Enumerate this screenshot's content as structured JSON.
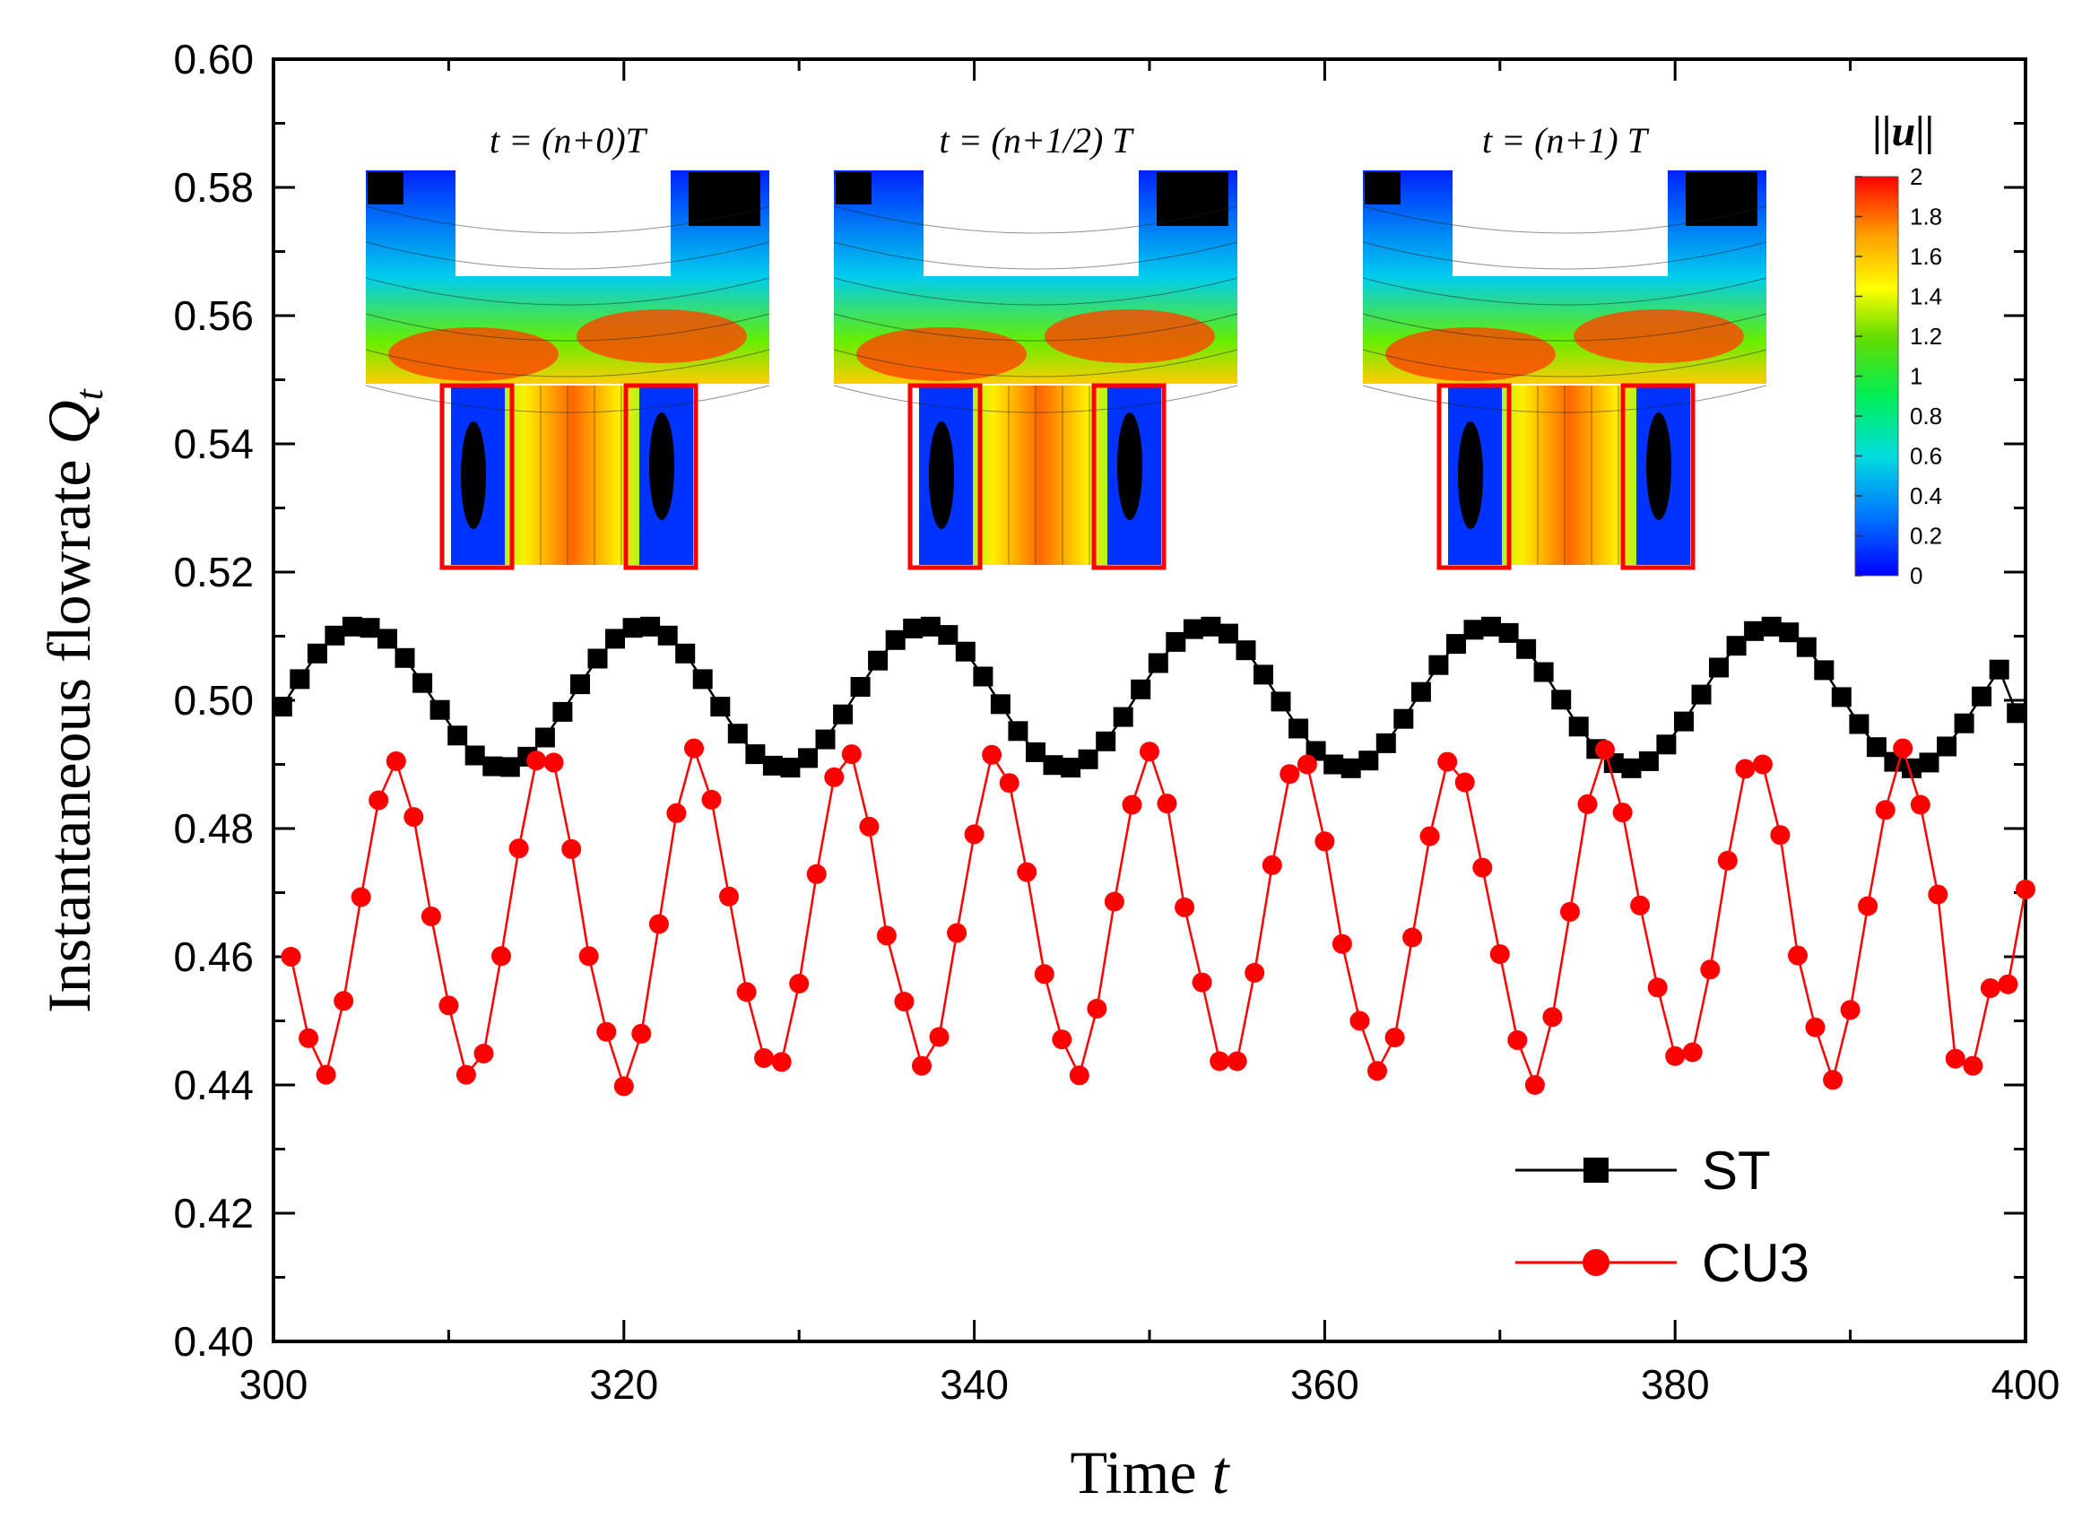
{
  "chart_data": {
    "type": "line",
    "xlabel": "Time t",
    "ylabel": "Instantaneous  flowrate Qt",
    "xlim": [
      300,
      400
    ],
    "ylim": [
      0.4,
      0.6
    ],
    "x_ticks": [
      "300",
      "320",
      "340",
      "360",
      "380",
      "400"
    ],
    "y_ticks": [
      "0.40",
      "0.42",
      "0.44",
      "0.46",
      "0.48",
      "0.50",
      "0.52",
      "0.54",
      "0.56",
      "0.58",
      "0.60"
    ],
    "legend_position": "bottom-right",
    "series": [
      {
        "name": "ST",
        "color": "#000000",
        "marker": "square",
        "x": [
          300.5,
          301.5,
          302.5,
          303.5,
          304.5,
          305.5,
          306.5,
          307.5,
          308.5,
          309.5,
          310.5,
          311.5,
          312.5,
          313.5,
          314.5,
          315.5,
          316.5,
          317.5,
          318.5,
          319.5,
          320.5,
          321.5,
          322.5,
          323.5,
          324.5,
          325.5,
          326.5,
          327.5,
          328.5,
          329.5,
          330.5,
          331.5,
          332.5,
          333.5,
          334.5,
          335.5,
          336.5,
          337.5,
          338.5,
          339.5,
          340.5,
          341.5,
          342.5,
          343.5,
          344.5,
          345.5,
          346.5,
          347.5,
          348.5,
          349.5,
          350.5,
          351.5,
          352.5,
          353.5,
          354.5,
          355.5,
          356.5,
          357.5,
          358.5,
          359.5,
          360.5,
          361.5,
          362.5,
          363.5,
          364.5,
          365.5,
          366.5,
          367.5,
          368.5,
          369.5,
          370.5,
          371.5,
          372.5,
          373.5,
          374.5,
          375.5,
          376.5,
          377.5,
          378.5,
          379.5,
          380.5,
          381.5,
          382.5,
          383.5,
          384.5,
          385.5,
          386.5,
          387.5,
          388.5,
          389.5,
          390.5,
          391.5,
          392.5,
          393.5,
          394.5,
          395.5,
          396.5,
          397.5,
          398.5,
          399.5
        ],
        "values": [
          0.499,
          0.5033,
          0.5073,
          0.5101,
          0.5115,
          0.5113,
          0.5096,
          0.5066,
          0.5027,
          0.4985,
          0.4945,
          0.4914,
          0.4897,
          0.4896,
          0.4912,
          0.4942,
          0.4982,
          0.5025,
          0.5065,
          0.5096,
          0.5113,
          0.5115,
          0.5101,
          0.5073,
          0.5033,
          0.499,
          0.4948,
          0.4916,
          0.4898,
          0.4895,
          0.491,
          0.4939,
          0.4978,
          0.5021,
          0.5062,
          0.5094,
          0.5112,
          0.5115,
          0.5102,
          0.5076,
          0.5037,
          0.4994,
          0.4952,
          0.4919,
          0.4899,
          0.4895,
          0.4908,
          0.4936,
          0.4974,
          0.5017,
          0.5058,
          0.5091,
          0.5111,
          0.5115,
          0.5104,
          0.5078,
          0.504,
          0.4998,
          0.4956,
          0.4921,
          0.49,
          0.4894,
          0.4906,
          0.4933,
          0.4971,
          0.5013,
          0.5055,
          0.5088,
          0.511,
          0.5115,
          0.5105,
          0.508,
          0.5044,
          0.5001,
          0.4959,
          0.4924,
          0.4902,
          0.4894,
          0.4905,
          0.4931,
          0.4967,
          0.5009,
          0.5051,
          0.5085,
          0.5108,
          0.5115,
          0.5106,
          0.5083,
          0.5047,
          0.5005,
          0.4963,
          0.4927,
          0.4904,
          0.4894,
          0.4903,
          0.4928,
          0.4964,
          0.5006,
          0.5048,
          0.498
        ]
      },
      {
        "name": "CU3",
        "color": "#ff0000",
        "marker": "circle",
        "x": [
          301.0,
          302.0,
          303.0,
          304.0,
          305.0,
          306.0,
          307.0,
          308.0,
          309.0,
          310.0,
          311.0,
          312.0,
          313.0,
          314.0,
          315.0,
          316.0,
          317.0,
          318.0,
          319.0,
          320.0,
          321.0,
          322.0,
          323.0,
          324.0,
          325.0,
          326.0,
          327.0,
          328.0,
          329.0,
          330.0,
          331.0,
          332.0,
          333.0,
          334.0,
          335.0,
          336.0,
          337.0,
          338.0,
          339.0,
          340.0,
          341.0,
          342.0,
          343.0,
          344.0,
          345.0,
          346.0,
          347.0,
          348.0,
          349.0,
          350.0,
          351.0,
          352.0,
          353.0,
          354.0,
          355.0,
          356.0,
          357.0,
          358.0,
          359.0,
          360.0,
          361.0,
          362.0,
          363.0,
          364.0,
          365.0,
          366.0,
          367.0,
          368.0,
          369.0,
          370.0,
          371.0,
          372.0,
          373.0,
          374.0,
          375.0,
          376.0,
          377.0,
          378.0,
          379.0,
          380.0,
          381.0,
          382.0,
          383.0,
          384.0,
          385.0,
          386.0,
          387.0,
          388.0,
          389.0,
          390.0,
          391.0,
          392.0,
          393.0,
          394.0,
          395.0,
          396.0,
          397.0,
          398.0,
          399.0,
          400.0
        ],
        "values": [
          0.46,
          0.4473,
          0.4416,
          0.4531,
          0.4693,
          0.4844,
          0.4905,
          0.4818,
          0.4663,
          0.4524,
          0.4416,
          0.4449,
          0.4601,
          0.4769,
          0.4906,
          0.4903,
          0.4768,
          0.4601,
          0.4483,
          0.4398,
          0.448,
          0.4651,
          0.4824,
          0.4925,
          0.4845,
          0.4694,
          0.4545,
          0.4442,
          0.4436,
          0.4558,
          0.4729,
          0.488,
          0.4916,
          0.4803,
          0.4633,
          0.453,
          0.443,
          0.4475,
          0.4637,
          0.4791,
          0.4915,
          0.4871,
          0.4732,
          0.4573,
          0.4471,
          0.4415,
          0.4519,
          0.4686,
          0.4837,
          0.492,
          0.4839,
          0.4677,
          0.456,
          0.4437,
          0.4437,
          0.4575,
          0.4743,
          0.4885,
          0.49,
          0.478,
          0.462,
          0.45,
          0.4422,
          0.4474,
          0.463,
          0.4788,
          0.4904,
          0.4872,
          0.4739,
          0.4604,
          0.447,
          0.44,
          0.4506,
          0.467,
          0.4838,
          0.4923,
          0.4825,
          0.468,
          0.4552,
          0.4445,
          0.4451,
          0.458,
          0.475,
          0.4893,
          0.49,
          0.479,
          0.4602,
          0.449,
          0.4408,
          0.4517,
          0.4679,
          0.4829,
          0.4925,
          0.4837,
          0.4697,
          0.4441,
          0.443,
          0.4551,
          0.4557,
          0.4705
        ]
      }
    ],
    "insets": [
      {
        "title": "t = (n+0)T"
      },
      {
        "title": "t = (n+1/2) T"
      },
      {
        "title": "t = (n+1) T"
      }
    ],
    "colorbar": {
      "title": "||u||",
      "ticks": [
        "2",
        "1.8",
        "1.6",
        "1.4",
        "1.2",
        "1",
        "0.8",
        "0.6",
        "0.4",
        "0.2",
        "0"
      ],
      "colors": [
        "#0000ff",
        "#0066ff",
        "#00ccff",
        "#00ff99",
        "#00e000",
        "#88ee00",
        "#ffff00",
        "#ffaa00",
        "#ff5500",
        "#ff0000"
      ]
    }
  }
}
